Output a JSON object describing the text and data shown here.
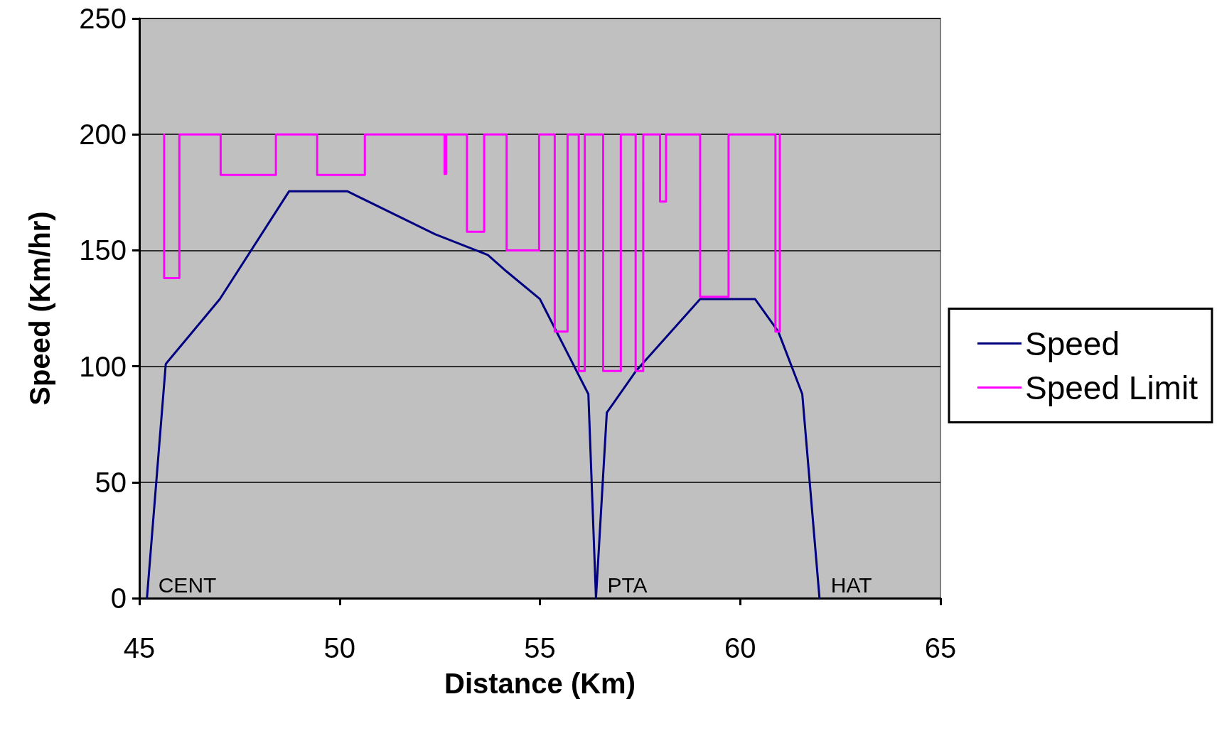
{
  "chart_data": {
    "type": "line",
    "xlabel": "Distance (Km)",
    "ylabel": "Speed (Km/hr)",
    "xlim": [
      45,
      65
    ],
    "xticks": [
      45,
      50,
      55,
      60,
      65
    ],
    "ylim": [
      0,
      250
    ],
    "yticks": [
      0,
      50,
      100,
      150,
      200,
      250
    ],
    "grid": "y",
    "legend": "right",
    "marker": "none",
    "line_style": "solid",
    "series": [
      {
        "name": "Speed",
        "color": "#000080",
        "x": [
          45.19,
          45.66,
          47.01,
          48.74,
          50.19,
          52.38,
          53.7,
          54.16,
          55.0,
          56.21,
          56.4,
          56.67,
          57.4,
          59.0,
          60.37,
          60.95,
          61.55,
          61.98
        ],
        "values": [
          0,
          101,
          129,
          175.5,
          175.5,
          157,
          148,
          141,
          129,
          88,
          0,
          80,
          98,
          129,
          129,
          115,
          88,
          0
        ]
      },
      {
        "name": "Speed Limit",
        "color": "#ff00ff",
        "x": [
          45.62,
          45.62,
          46.0,
          46.0,
          47.03,
          47.03,
          48.41,
          48.41,
          49.44,
          49.44,
          50.63,
          50.63,
          52.62,
          52.62,
          52.66,
          52.66,
          53.18,
          53.18,
          53.61,
          53.61,
          54.17,
          54.17,
          54.98,
          54.98,
          55.37,
          55.37,
          55.69,
          55.69,
          55.97,
          55.97,
          56.12,
          56.12,
          56.58,
          56.58,
          57.02,
          57.02,
          57.39,
          57.39,
          57.58,
          57.58,
          58.0,
          58.0,
          58.15,
          58.15,
          59.0,
          59.0,
          59.71,
          59.71,
          60.88,
          60.88,
          60.99,
          60.99
        ],
        "values": [
          200,
          138,
          138,
          200,
          200,
          182.5,
          182.5,
          200,
          200,
          182.5,
          182.5,
          200,
          200,
          183,
          183,
          200,
          200,
          158,
          158,
          200,
          200,
          150,
          150,
          200,
          200,
          115,
          115,
          200,
          200,
          98,
          98,
          200,
          200,
          98,
          98,
          200,
          200,
          98,
          98,
          200,
          200,
          171,
          171,
          200,
          200,
          130,
          130,
          200,
          200,
          115,
          115,
          200
        ]
      }
    ],
    "annotations": [
      {
        "text": "CENT",
        "x": 45.19,
        "y": 0
      },
      {
        "text": "PTA",
        "x": 56.4,
        "y": 0
      },
      {
        "text": "HAT",
        "x": 61.98,
        "y": 0
      }
    ]
  }
}
